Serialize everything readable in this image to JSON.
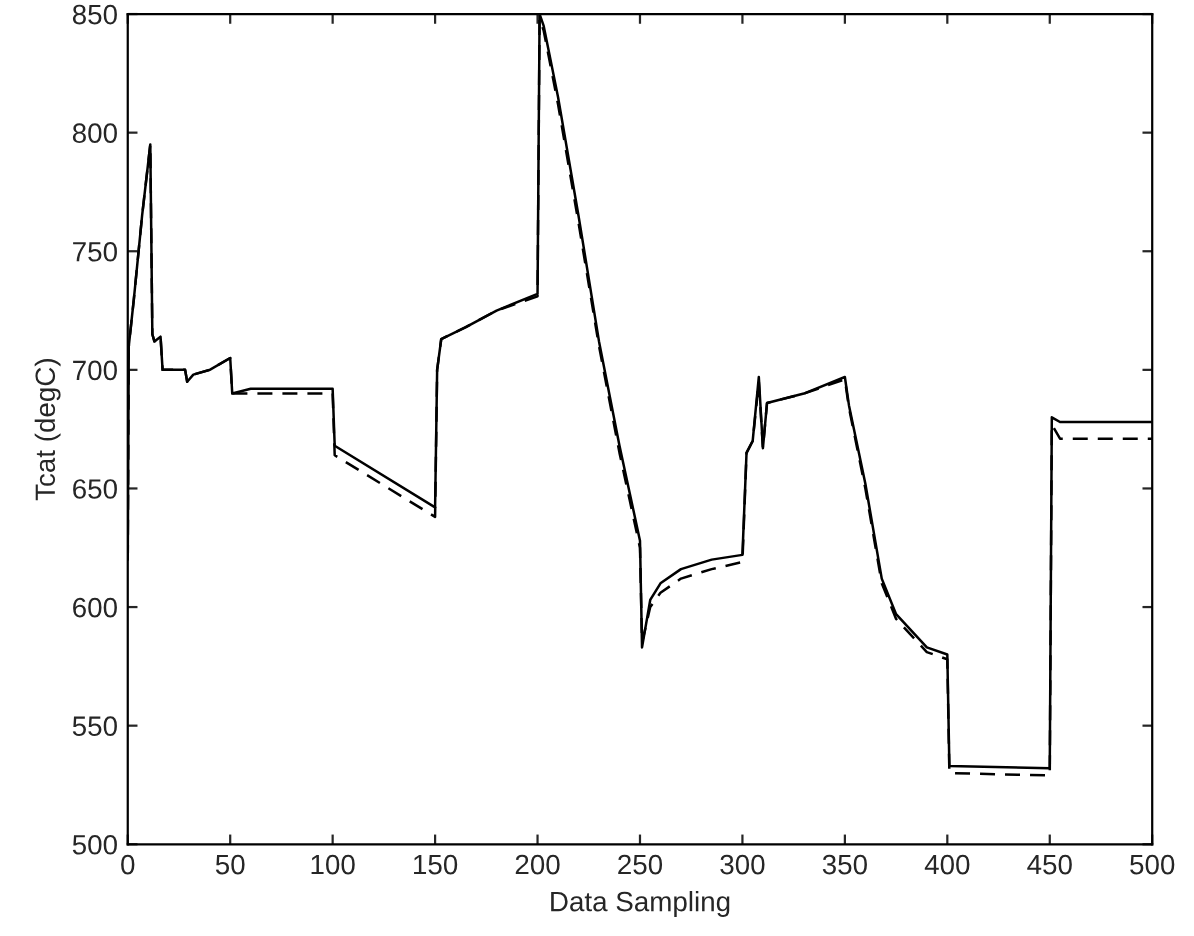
{
  "chart_data": {
    "type": "line",
    "xlabel": "Data Sampling",
    "ylabel": "Tcat (degC)",
    "xlim": [
      0,
      500
    ],
    "ylim": [
      500,
      850
    ],
    "xticks": [
      0,
      50,
      100,
      150,
      200,
      250,
      300,
      350,
      400,
      450,
      500
    ],
    "yticks": [
      500,
      550,
      600,
      650,
      700,
      750,
      800,
      850
    ],
    "grid": false,
    "legend": false,
    "series": [
      {
        "color": "#000000",
        "line_style": "solid",
        "x": [
          0,
          0.5,
          3,
          7,
          11,
          12,
          13,
          16,
          17,
          28,
          29,
          32,
          40,
          50,
          51,
          60,
          100,
          101,
          150,
          151,
          153,
          165,
          180,
          200,
          201,
          203,
          210,
          220,
          230,
          240,
          245,
          250,
          251,
          255,
          260,
          270,
          285,
          300,
          302,
          305,
          308,
          310,
          312,
          330,
          350,
          352,
          360,
          368,
          375,
          390,
          400,
          401,
          450,
          451,
          455,
          500
        ],
        "values": [
          620,
          710,
          730,
          765,
          795,
          715,
          712,
          714,
          700,
          700,
          695,
          698,
          700,
          705,
          690,
          692,
          692,
          668,
          642,
          700,
          713,
          718,
          725,
          732,
          850,
          845,
          815,
          765,
          712,
          668,
          648,
          628,
          583,
          603,
          610,
          616,
          620,
          622,
          665,
          670,
          697,
          667,
          686,
          690,
          697,
          685,
          652,
          612,
          597,
          583,
          580,
          533,
          532,
          680,
          678,
          678
        ]
      },
      {
        "color": "#000000",
        "line_style": "dashed",
        "x": [
          0,
          0.5,
          3,
          7,
          11,
          12,
          13,
          16,
          17,
          28,
          29,
          32,
          40,
          50,
          51,
          60,
          100,
          101,
          150,
          151,
          153,
          165,
          180,
          200,
          201,
          203,
          210,
          220,
          230,
          240,
          245,
          250,
          251,
          255,
          260,
          270,
          285,
          300,
          302,
          305,
          308,
          310,
          312,
          330,
          350,
          352,
          360,
          368,
          375,
          390,
          400,
          401,
          450,
          451,
          455,
          500
        ],
        "values": [
          620,
          710,
          730,
          765,
          795,
          715,
          712,
          714,
          700,
          700,
          695,
          698,
          700,
          705,
          690,
          690,
          690,
          664,
          638,
          700,
          713,
          718,
          725,
          731,
          848,
          843,
          812,
          762,
          710,
          665,
          645,
          625,
          585,
          600,
          606,
          612,
          616,
          619,
          665,
          670,
          695,
          667,
          686,
          690,
          696,
          684,
          650,
          610,
          595,
          581,
          578,
          530,
          529,
          677,
          671,
          671
        ]
      }
    ]
  }
}
